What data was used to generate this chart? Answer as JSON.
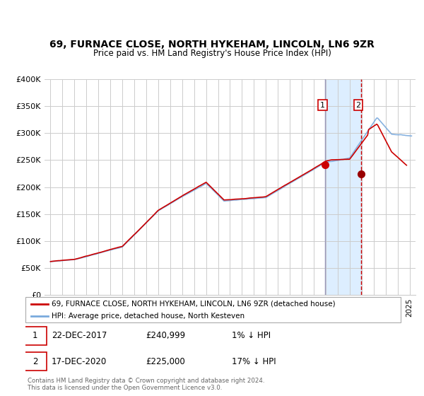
{
  "title": "69, FURNACE CLOSE, NORTH HYKEHAM, LINCOLN, LN6 9ZR",
  "subtitle": "Price paid vs. HM Land Registry's House Price Index (HPI)",
  "red_label": "69, FURNACE CLOSE, NORTH HYKEHAM, LINCOLN, LN6 9ZR (detached house)",
  "blue_label": "HPI: Average price, detached house, North Kesteven",
  "annotation1": [
    "1",
    "22-DEC-2017",
    "£240,999",
    "1% ↓ HPI"
  ],
  "annotation2": [
    "2",
    "17-DEC-2020",
    "£225,000",
    "17% ↓ HPI"
  ],
  "footer": "Contains HM Land Registry data © Crown copyright and database right 2024.\nThis data is licensed under the Open Government Licence v3.0.",
  "vline1_x": 2017.97,
  "vline2_x": 2020.97,
  "point1_x": 2017.97,
  "point1_y": 240999,
  "point2_x": 2020.97,
  "point2_y": 225000,
  "shade_start": 2017.97,
  "shade_end": 2020.97,
  "ylim": [
    0,
    400000
  ],
  "xlim": [
    1994.5,
    2025.5
  ],
  "yticks": [
    0,
    50000,
    100000,
    150000,
    200000,
    250000,
    300000,
    350000,
    400000
  ],
  "ytick_labels": [
    "£0",
    "£50K",
    "£100K",
    "£150K",
    "£200K",
    "£250K",
    "£300K",
    "£350K",
    "£400K"
  ],
  "background_color": "#ffffff",
  "grid_color": "#cccccc",
  "red_color": "#cc0000",
  "blue_color": "#7aaadd",
  "shade_color": "#ddeeff",
  "vline1_color": "#9999bb",
  "vline2_color": "#cc0000"
}
